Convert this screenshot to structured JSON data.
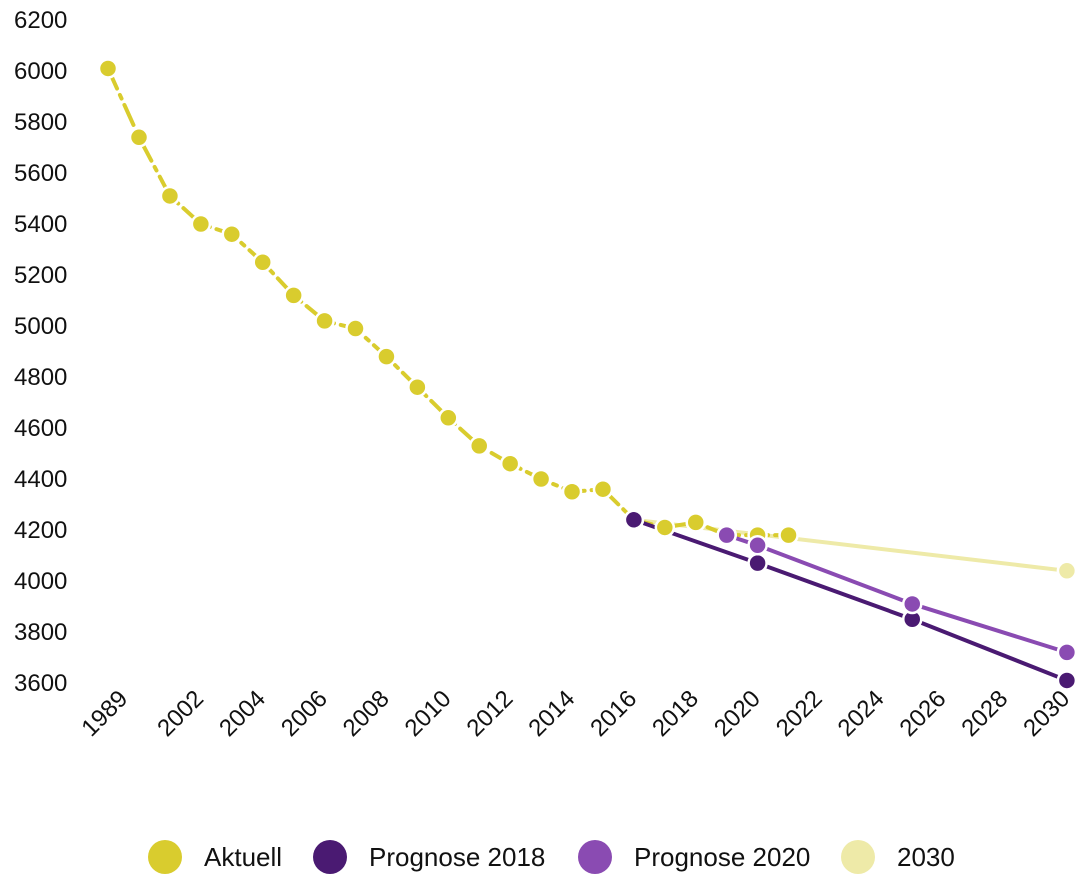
{
  "chart_data": {
    "type": "line",
    "title": "",
    "xlabel": "",
    "ylabel": "",
    "ylim": [
      3600,
      6200
    ],
    "y_ticks": [
      6200,
      6000,
      5800,
      5600,
      5400,
      5200,
      5000,
      4800,
      4600,
      4400,
      4200,
      4000,
      3800,
      3600
    ],
    "x_tick_labels": [
      "1989",
      "2002",
      "2004",
      "2006",
      "2008",
      "2010",
      "2012",
      "2014",
      "2016",
      "2018",
      "2020",
      "2022",
      "2024",
      "2026",
      "2028",
      "2030"
    ],
    "grid": false,
    "legend_position": "bottom",
    "series": [
      {
        "name": "Aktuell",
        "color": "#d9cc2e",
        "line_style": "dash-dot",
        "points": [
          [
            "1989",
            6010
          ],
          [
            "2000",
            5740
          ],
          [
            "2001",
            5510
          ],
          [
            "2002",
            5400
          ],
          [
            "2003",
            5360
          ],
          [
            "2004",
            5250
          ],
          [
            "2005",
            5120
          ],
          [
            "2006",
            5020
          ],
          [
            "2007",
            4990
          ],
          [
            "2008",
            4880
          ],
          [
            "2009",
            4760
          ],
          [
            "2010",
            4640
          ],
          [
            "2011",
            4530
          ],
          [
            "2012",
            4460
          ],
          [
            "2013",
            4400
          ],
          [
            "2014",
            4350
          ],
          [
            "2015",
            4360
          ],
          [
            "2016",
            4240
          ],
          [
            "2017",
            4210
          ],
          [
            "2018",
            4230
          ],
          [
            "2019",
            4180
          ],
          [
            "2020",
            4180
          ],
          [
            "2021",
            4180
          ]
        ]
      },
      {
        "name": "Prognose 2018",
        "color": "#4a1a72",
        "line_style": "solid",
        "points": [
          [
            "2016",
            4240
          ],
          [
            "2020",
            4070
          ],
          [
            "2025",
            3850
          ],
          [
            "2030",
            3610
          ]
        ]
      },
      {
        "name": "Prognose 2020",
        "color": "#8a4bb2",
        "line_style": "solid",
        "points": [
          [
            "2019",
            4180
          ],
          [
            "2020",
            4140
          ],
          [
            "2025",
            3910
          ],
          [
            "2030",
            3720
          ]
        ]
      },
      {
        "name": "2030",
        "color": "#eeeaa8",
        "line_style": "solid",
        "points": [
          [
            "2016",
            4240
          ],
          [
            "2030",
            4040
          ]
        ]
      }
    ]
  }
}
